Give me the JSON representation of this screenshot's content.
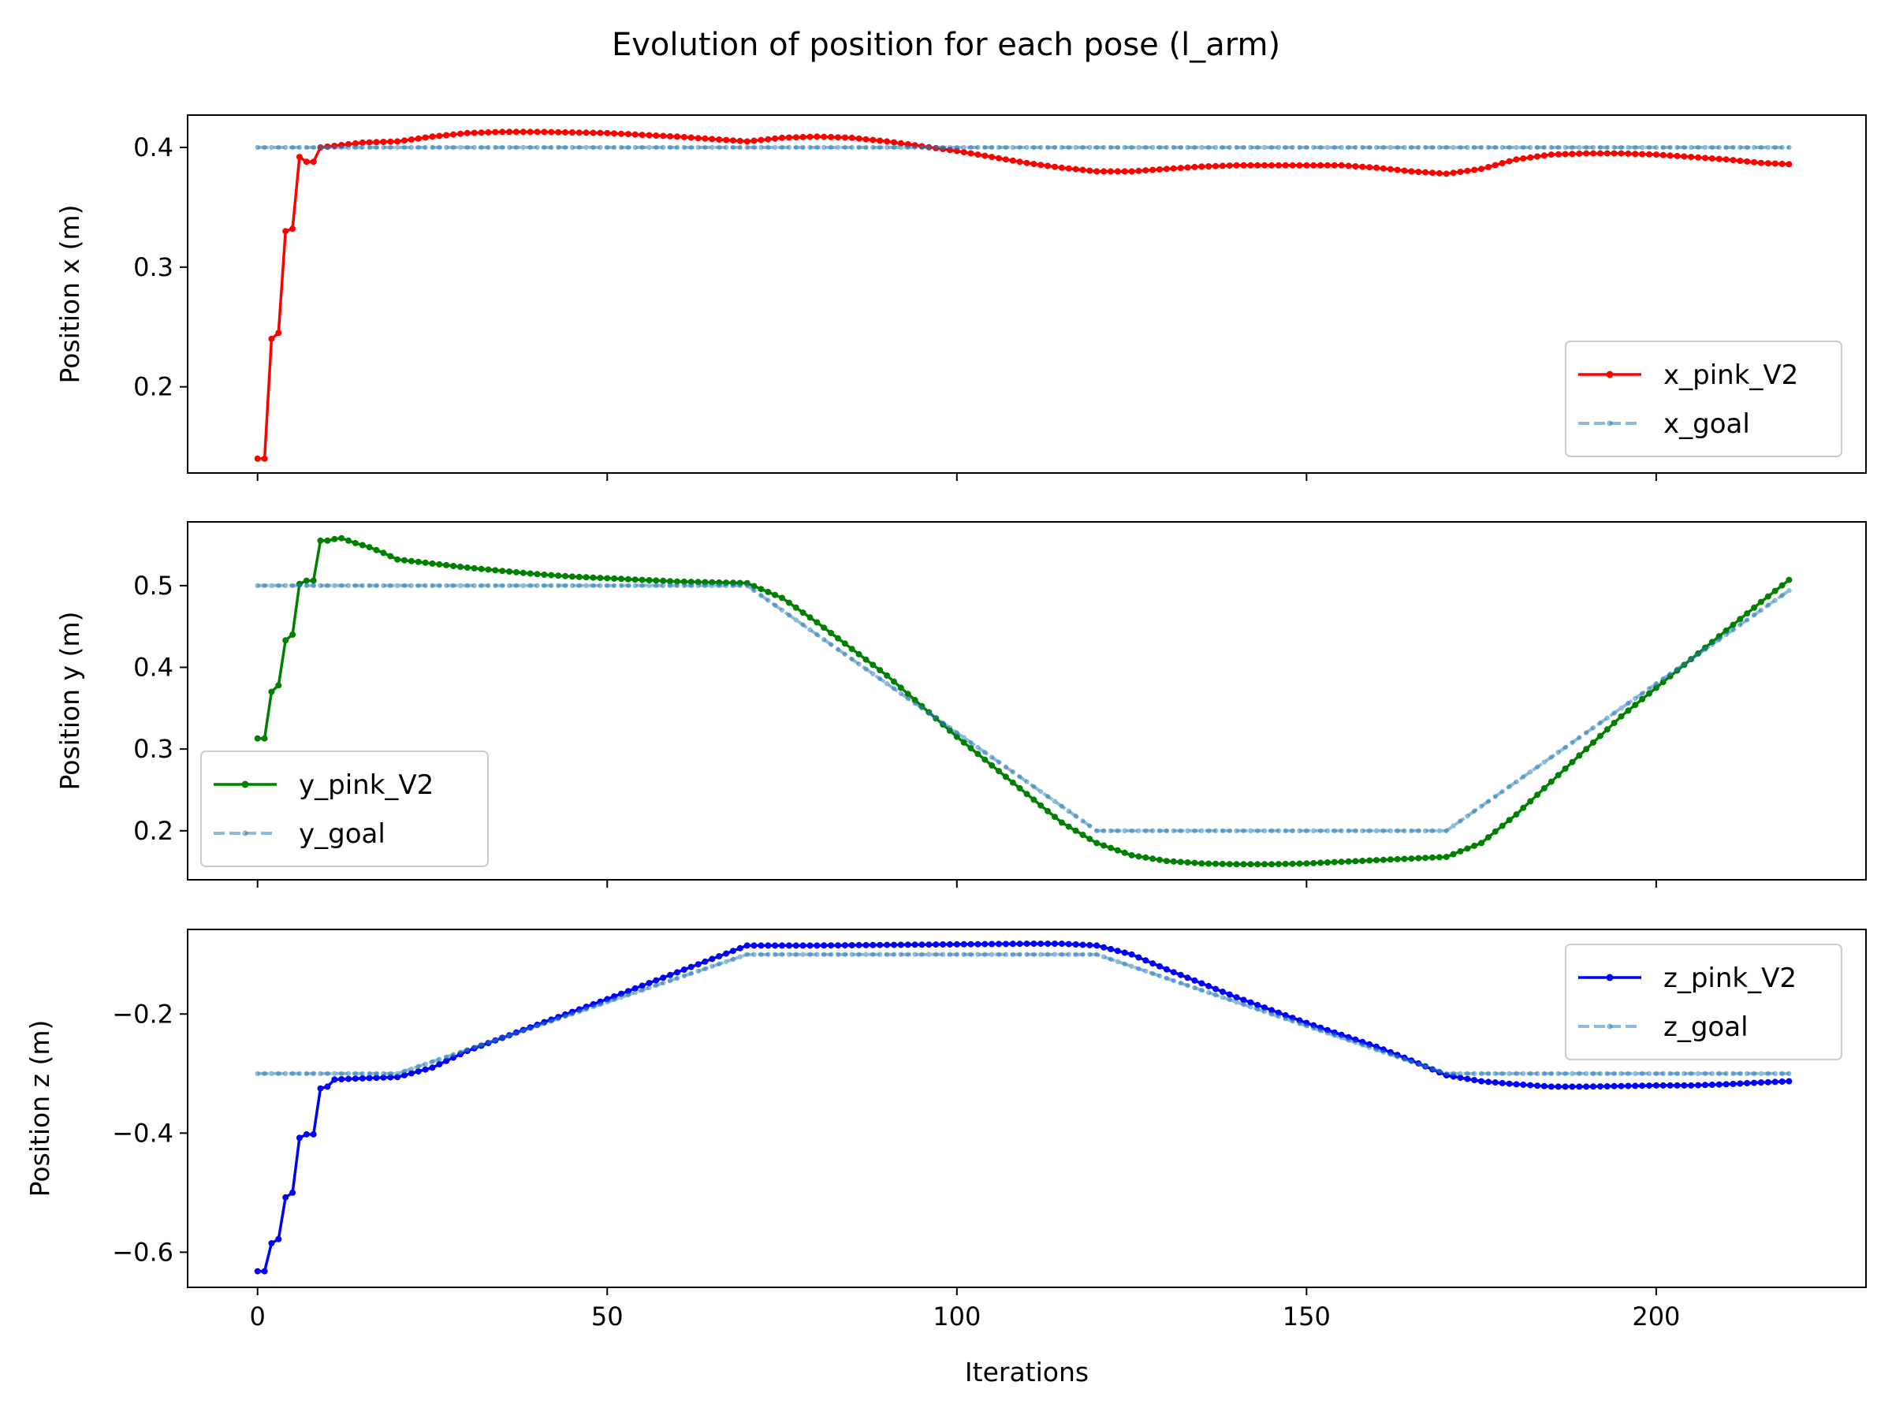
{
  "title": "Evolution of position for each pose (l_arm)",
  "colors": {
    "x": "#ff0000",
    "y": "#008000",
    "z": "#0000ff",
    "goal": "#1f77b4"
  },
  "chart_data": {
    "type": "line",
    "title": "Evolution of position for each pose (l_arm)",
    "xlabel": "Iterations",
    "x_range": [
      0,
      219
    ],
    "xlim": [
      -10,
      230
    ],
    "xticks": [
      0,
      50,
      100,
      150,
      200
    ],
    "sharex": true,
    "panels": [
      {
        "ylabel": "Position x (m)",
        "ylim": [
          0.128,
          0.427
        ],
        "yticks": [
          0.2,
          0.3,
          0.4
        ],
        "ytick_labels": [
          "0.2",
          "0.3",
          "0.4"
        ],
        "legend_loc": "lower-right",
        "series": [
          {
            "name": "x_pink_V2",
            "color": "#ff0000",
            "style": "solid-dots",
            "points": [
              [
                0,
                0.14
              ],
              [
                1,
                0.14
              ],
              [
                2,
                0.24
              ],
              [
                3,
                0.245
              ],
              [
                4,
                0.33
              ],
              [
                5,
                0.332
              ],
              [
                6,
                0.392
              ],
              [
                7,
                0.388
              ],
              [
                8,
                0.388
              ],
              [
                9,
                0.4
              ],
              [
                15,
                0.404
              ],
              [
                20,
                0.405
              ],
              [
                25,
                0.409
              ],
              [
                30,
                0.412
              ],
              [
                35,
                0.413
              ],
              [
                40,
                0.413
              ],
              [
                50,
                0.412
              ],
              [
                60,
                0.409
              ],
              [
                70,
                0.405
              ],
              [
                75,
                0.408
              ],
              [
                80,
                0.409
              ],
              [
                85,
                0.408
              ],
              [
                90,
                0.405
              ],
              [
                95,
                0.401
              ],
              [
                100,
                0.397
              ],
              [
                105,
                0.392
              ],
              [
                110,
                0.387
              ],
              [
                115,
                0.383
              ],
              [
                120,
                0.38
              ],
              [
                125,
                0.38
              ],
              [
                130,
                0.382
              ],
              [
                135,
                0.384
              ],
              [
                140,
                0.385
              ],
              [
                150,
                0.385
              ],
              [
                155,
                0.385
              ],
              [
                160,
                0.383
              ],
              [
                165,
                0.38
              ],
              [
                170,
                0.378
              ],
              [
                175,
                0.382
              ],
              [
                180,
                0.39
              ],
              [
                185,
                0.394
              ],
              [
                190,
                0.395
              ],
              [
                195,
                0.395
              ],
              [
                200,
                0.394
              ],
              [
                205,
                0.392
              ],
              [
                210,
                0.39
              ],
              [
                215,
                0.387
              ],
              [
                219,
                0.386
              ]
            ]
          },
          {
            "name": "x_goal",
            "color": "#1f77b4",
            "style": "dashed-dots",
            "points": [
              [
                0,
                0.4
              ],
              [
                219,
                0.4
              ]
            ]
          }
        ]
      },
      {
        "ylabel": "Position y (m)",
        "ylim": [
          0.14,
          0.578
        ],
        "yticks": [
          0.2,
          0.3,
          0.4,
          0.5
        ],
        "ytick_labels": [
          "0.2",
          "0.3",
          "0.4",
          "0.5"
        ],
        "legend_loc": "lower-left",
        "series": [
          {
            "name": "y_pink_V2",
            "color": "#008000",
            "style": "solid-dots",
            "points": [
              [
                0,
                0.313
              ],
              [
                1,
                0.313
              ],
              [
                2,
                0.37
              ],
              [
                3,
                0.378
              ],
              [
                4,
                0.433
              ],
              [
                5,
                0.44
              ],
              [
                6,
                0.502
              ],
              [
                7,
                0.506
              ],
              [
                8,
                0.506
              ],
              [
                9,
                0.555
              ],
              [
                10,
                0.555
              ],
              [
                11,
                0.557
              ],
              [
                12,
                0.558
              ],
              [
                14,
                0.552
              ],
              [
                16,
                0.547
              ],
              [
                18,
                0.54
              ],
              [
                20,
                0.532
              ],
              [
                25,
                0.527
              ],
              [
                30,
                0.522
              ],
              [
                35,
                0.518
              ],
              [
                40,
                0.514
              ],
              [
                45,
                0.511
              ],
              [
                50,
                0.509
              ],
              [
                55,
                0.507
              ],
              [
                60,
                0.505
              ],
              [
                65,
                0.504
              ],
              [
                70,
                0.503
              ],
              [
                75,
                0.485
              ],
              [
                80,
                0.455
              ],
              [
                90,
                0.39
              ],
              [
                100,
                0.315
              ],
              [
                110,
                0.245
              ],
              [
                115,
                0.21
              ],
              [
                120,
                0.185
              ],
              [
                125,
                0.17
              ],
              [
                130,
                0.163
              ],
              [
                135,
                0.16
              ],
              [
                140,
                0.159
              ],
              [
                145,
                0.159
              ],
              [
                150,
                0.16
              ],
              [
                155,
                0.162
              ],
              [
                160,
                0.164
              ],
              [
                165,
                0.166
              ],
              [
                170,
                0.168
              ],
              [
                175,
                0.185
              ],
              [
                180,
                0.22
              ],
              [
                185,
                0.26
              ],
              [
                190,
                0.3
              ],
              [
                195,
                0.34
              ],
              [
                200,
                0.375
              ],
              [
                205,
                0.41
              ],
              [
                210,
                0.445
              ],
              [
                215,
                0.48
              ],
              [
                219,
                0.507
              ]
            ]
          },
          {
            "name": "y_goal",
            "color": "#1f77b4",
            "style": "dashed-dots",
            "points": [
              [
                0,
                0.5
              ],
              [
                70,
                0.5
              ],
              [
                120,
                0.2
              ],
              [
                170,
                0.2
              ],
              [
                219,
                0.494
              ]
            ]
          }
        ]
      },
      {
        "ylabel": "Position z (m)",
        "ylim": [
          -0.659,
          -0.058
        ],
        "yticks": [
          -0.6,
          -0.4,
          -0.2
        ],
        "ytick_labels": [
          "−0.6",
          "−0.4",
          "−0.2"
        ],
        "legend_loc": "upper-right",
        "series": [
          {
            "name": "z_pink_V2",
            "color": "#0000ff",
            "style": "solid-dots",
            "points": [
              [
                0,
                -0.632
              ],
              [
                1,
                -0.632
              ],
              [
                2,
                -0.585
              ],
              [
                3,
                -0.578
              ],
              [
                4,
                -0.508
              ],
              [
                5,
                -0.5
              ],
              [
                6,
                -0.408
              ],
              [
                7,
                -0.402
              ],
              [
                8,
                -0.402
              ],
              [
                9,
                -0.325
              ],
              [
                10,
                -0.322
              ],
              [
                11,
                -0.31
              ],
              [
                15,
                -0.308
              ],
              [
                20,
                -0.306
              ],
              [
                25,
                -0.29
              ],
              [
                30,
                -0.262
              ],
              [
                40,
                -0.218
              ],
              [
                50,
                -0.175
              ],
              [
                60,
                -0.13
              ],
              [
                70,
                -0.085
              ],
              [
                75,
                -0.085
              ],
              [
                80,
                -0.085
              ],
              [
                90,
                -0.084
              ],
              [
                100,
                -0.083
              ],
              [
                110,
                -0.082
              ],
              [
                115,
                -0.082
              ],
              [
                120,
                -0.085
              ],
              [
                125,
                -0.1
              ],
              [
                130,
                -0.125
              ],
              [
                140,
                -0.172
              ],
              [
                150,
                -0.215
              ],
              [
                160,
                -0.255
              ],
              [
                165,
                -0.278
              ],
              [
                170,
                -0.303
              ],
              [
                175,
                -0.313
              ],
              [
                180,
                -0.318
              ],
              [
                185,
                -0.322
              ],
              [
                190,
                -0.322
              ],
              [
                195,
                -0.321
              ],
              [
                200,
                -0.32
              ],
              [
                205,
                -0.32
              ],
              [
                210,
                -0.318
              ],
              [
                215,
                -0.315
              ],
              [
                219,
                -0.313
              ]
            ]
          },
          {
            "name": "z_goal",
            "color": "#1f77b4",
            "style": "dashed-dots",
            "points": [
              [
                0,
                -0.3
              ],
              [
                20,
                -0.3
              ],
              [
                70,
                -0.1
              ],
              [
                120,
                -0.1
              ],
              [
                170,
                -0.3
              ],
              [
                219,
                -0.3
              ]
            ]
          }
        ]
      }
    ]
  }
}
